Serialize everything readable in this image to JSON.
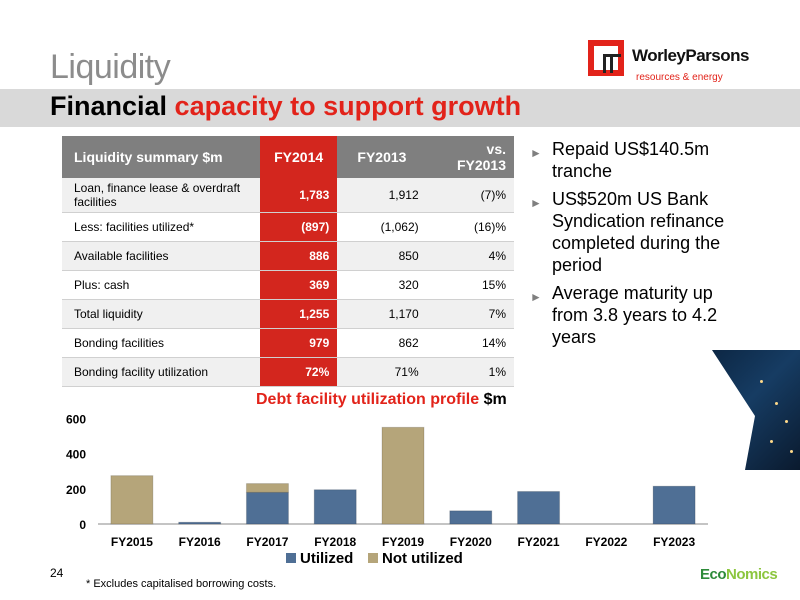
{
  "header": {
    "title": "Liquidity",
    "subtitle_black": "Financial",
    "subtitle_red": "capacity to support growth"
  },
  "logo": {
    "name": "WorleyParsons",
    "tagline": "resources & energy"
  },
  "table": {
    "headers": [
      "Liquidity summary $m",
      "FY2014",
      "FY2013",
      "vs. FY2013"
    ],
    "rows": [
      {
        "label": "Loan, finance lease & overdraft facilities",
        "fy2014": "1,783",
        "fy2013": "1,912",
        "vs": "(7)%"
      },
      {
        "label": "Less: facilities utilized*",
        "fy2014": "(897)",
        "fy2013": "(1,062)",
        "vs": "(16)%"
      },
      {
        "label": "Available facilities",
        "fy2014": "886",
        "fy2013": "850",
        "vs": "4%"
      },
      {
        "label": "Plus: cash",
        "fy2014": "369",
        "fy2013": "320",
        "vs": "15%"
      },
      {
        "label": "Total liquidity",
        "fy2014": "1,255",
        "fy2013": "1,170",
        "vs": "7%"
      },
      {
        "label": "Bonding facilities",
        "fy2014": "979",
        "fy2013": "862",
        "vs": "14%"
      },
      {
        "label": "Bonding facility utilization",
        "fy2014": "72%",
        "fy2013": "71%",
        "vs": "1%"
      }
    ]
  },
  "bullets": [
    "Repaid US$140.5m tranche",
    "US$520m US Bank Syndication refinance completed during the period",
    "Average maturity up from 3.8 years to 4.2 years"
  ],
  "chart_data": {
    "type": "bar",
    "stacked": true,
    "title": "Debt facility utilization profile",
    "title_unit": "$m",
    "categories": [
      "FY2015",
      "FY2016",
      "FY2017",
      "FY2018",
      "FY2019",
      "FY2020",
      "FY2021",
      "FY2022",
      "FY2023"
    ],
    "series": [
      {
        "name": "Utilized",
        "color": "#4f6f95",
        "values": [
          0,
          10,
          180,
          195,
          0,
          75,
          185,
          0,
          215
        ]
      },
      {
        "name": "Not utilized",
        "color": "#b5a57a",
        "values": [
          275,
          0,
          50,
          0,
          550,
          0,
          0,
          0,
          0
        ]
      }
    ],
    "yticks": [
      0,
      200,
      400,
      600
    ],
    "ylim": [
      0,
      620
    ],
    "legend_position": "bottom"
  },
  "footer": {
    "page_number": "24",
    "footnote": "* Excludes capitalised borrowing costs.",
    "brand_part1": "Eco",
    "brand_part2": "Nomics"
  }
}
